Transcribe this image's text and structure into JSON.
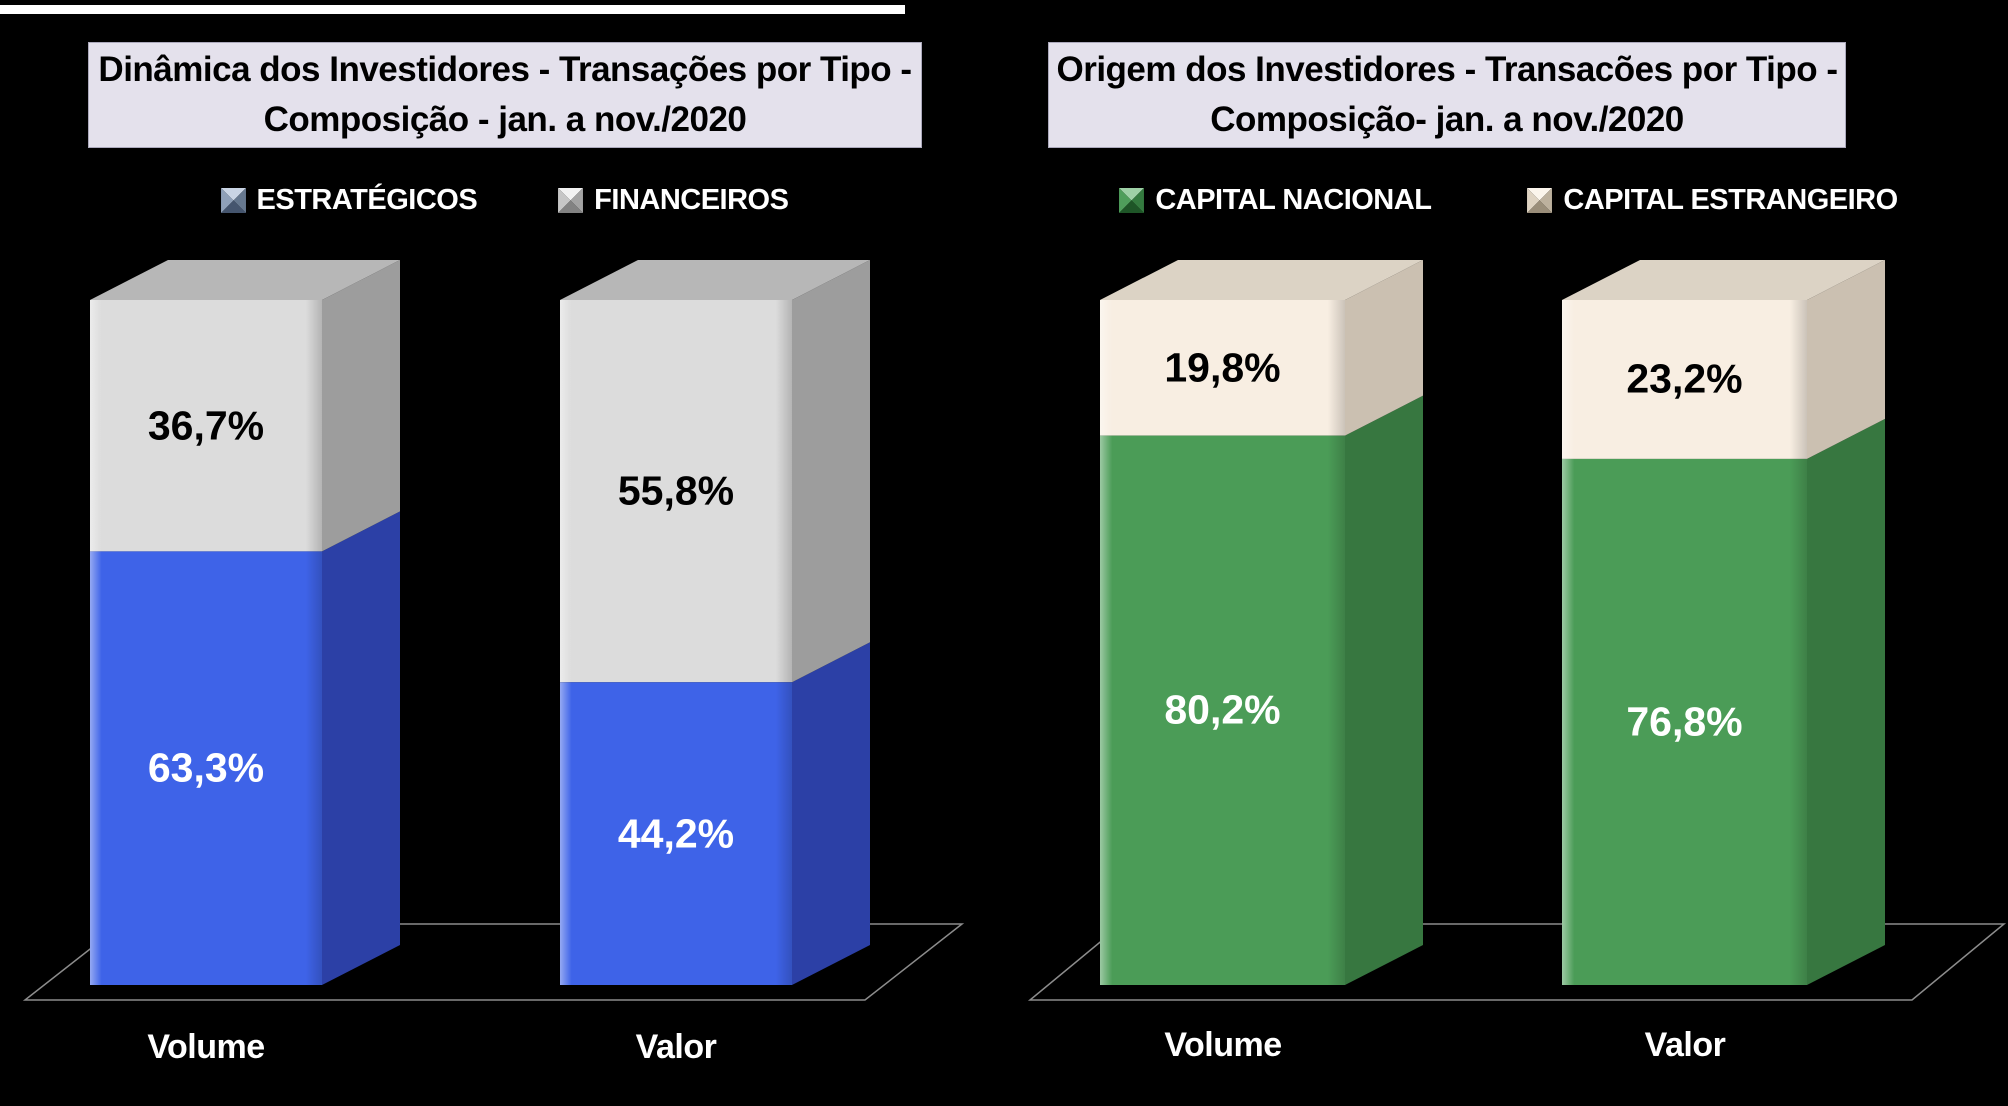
{
  "page": {
    "background": "#000000",
    "top_strip_color": "#FFFFFF"
  },
  "styles": {
    "title_bg": "#E4E1EC",
    "title_text": "#000000",
    "title_border": "#ACA9BC",
    "legend_text": "#FFFFFF",
    "category_text": "#FFFFFF",
    "floor_line": "#8C8C8C"
  },
  "chart_data": [
    {
      "type": "bar",
      "subtype": "3d-100%-stacked-column",
      "title": "Dinâmica dos Investidores - Transações por Tipo - Composição - jan. a nov./2020",
      "title_lines": [
        "Dinâmica dos Investidores - Transações por Tipo -",
        "Composição - jan. a nov./2020"
      ],
      "categories": [
        "Volume",
        "Valor"
      ],
      "legend_position": "top",
      "value_format": "percent-comma-decimal",
      "ylim": [
        0,
        100
      ],
      "grid": false,
      "series": [
        {
          "name": "ESTRATÉGICOS",
          "values": [
            63.3,
            44.2
          ],
          "labels": [
            "63,3%",
            "44,2%"
          ],
          "colors": {
            "front": "#3E63E8",
            "side": "#2C40A6",
            "top": "#5F7FEE",
            "label": "#FFFFFF"
          },
          "marker": {
            "light": "#C9D4E4",
            "mid": "#8FA0B8",
            "mid2": "#66788F",
            "dark": "#45556E"
          }
        },
        {
          "name": "FINANCEIROS",
          "values": [
            36.7,
            55.8
          ],
          "labels": [
            "36,7%",
            "55,8%"
          ],
          "colors": {
            "front": "#DCDCDC",
            "side": "#9D9D9D",
            "top": "#B7B7B7",
            "label": "#000000"
          },
          "marker": {
            "light": "#F1F1F1",
            "mid": "#C6C6C6",
            "mid2": "#A3A3A3",
            "dark": "#828282"
          }
        }
      ]
    },
    {
      "type": "bar",
      "subtype": "3d-100%-stacked-column",
      "title": "Origem dos Investidores - Transacões por Tipo - Composição- jan. a nov./2020",
      "title_lines": [
        "Origem dos Investidores - Transacões por Tipo -",
        "Composição- jan. a nov./2020"
      ],
      "categories": [
        "Volume",
        "Valor"
      ],
      "legend_position": "top",
      "value_format": "percent-comma-decimal",
      "ylim": [
        0,
        100
      ],
      "grid": false,
      "series": [
        {
          "name": "CAPITAL NACIONAL",
          "values": [
            80.2,
            76.8
          ],
          "labels": [
            "80,2%",
            "76,8%"
          ],
          "colors": {
            "front": "#4B9C57",
            "side": "#377740",
            "top": "#6BB274",
            "label": "#FFFFFF"
          },
          "marker": {
            "light": "#9ED0A6",
            "mid": "#4F9E5B",
            "mid2": "#347A3F",
            "dark": "#1E5527"
          }
        },
        {
          "name": "CAPITAL ESTRANGEIRO",
          "values": [
            19.8,
            23.2
          ],
          "labels": [
            "19,8%",
            "23,2%"
          ],
          "colors": {
            "front": "#F8EEE2",
            "side": "#CBC0B1",
            "top": "#DCD3C5",
            "label": "#000000"
          },
          "marker": {
            "light": "#FBF5EC",
            "mid": "#DED3C2",
            "mid2": "#BDB19E",
            "dark": "#9A8E7A"
          }
        }
      ]
    }
  ]
}
